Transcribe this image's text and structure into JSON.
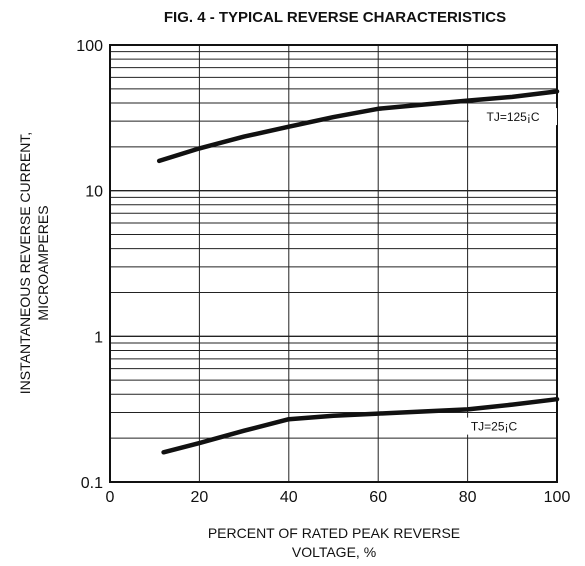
{
  "chart_data": {
    "type": "line",
    "title": "FIG. 4 - TYPICAL REVERSE CHARACTERISTICS",
    "xlabel_line1": "PERCENT OF RATED PEAK REVERSE",
    "xlabel_line2": "VOLTAGE, %",
    "ylabel_line1": "INSTANTANEOUS REVERSE CURRENT,",
    "ylabel_line2": "MICROAMPERES",
    "xlim": [
      0,
      100
    ],
    "ylim": [
      0.1,
      100
    ],
    "y_scale": "log",
    "grid": true,
    "x_ticks": [
      "0",
      "20",
      "40",
      "60",
      "80",
      "100"
    ],
    "y_ticks": [
      "0.1",
      "1",
      "10",
      "100"
    ],
    "series": [
      {
        "name": "TJ=125¡C",
        "x": [
          11,
          20,
          30,
          40,
          50,
          60,
          70,
          80,
          90,
          100
        ],
        "y": [
          16,
          19.5,
          23.5,
          27.5,
          32,
          36.5,
          39,
          41.5,
          44,
          48
        ]
      },
      {
        "name": "TJ=25¡C",
        "x": [
          12,
          20,
          30,
          40,
          50,
          60,
          70,
          80,
          90,
          100
        ],
        "y": [
          0.16,
          0.185,
          0.225,
          0.27,
          0.285,
          0.295,
          0.305,
          0.315,
          0.34,
          0.37
        ]
      }
    ]
  }
}
